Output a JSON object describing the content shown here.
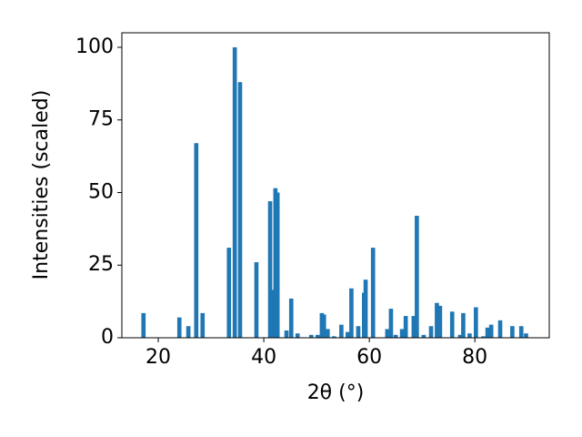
{
  "chart_data": {
    "type": "bar",
    "xlabel": "2θ (°)",
    "ylabel": "Intensities (scaled)",
    "x": [
      17.2,
      24.0,
      25.7,
      27.2,
      28.4,
      33.4,
      34.5,
      35.5,
      38.6,
      41.2,
      41.7,
      42.2,
      42.6,
      44.3,
      45.2,
      46.4,
      49.0,
      50.2,
      51.0,
      51.4,
      52.1,
      53.3,
      54.7,
      55.9,
      56.6,
      57.9,
      59.0,
      59.3,
      60.7,
      63.4,
      64.1,
      65.0,
      66.2,
      66.9,
      68.4,
      69.0,
      70.3,
      71.7,
      72.8,
      73.4,
      75.7,
      77.2,
      77.8,
      79.0,
      80.2,
      81.6,
      82.4,
      83.1,
      84.8,
      87.1,
      88.8,
      89.7
    ],
    "values": [
      8.5,
      7,
      4,
      67,
      8.5,
      31,
      100,
      88,
      26,
      47,
      16.5,
      51.5,
      50,
      2.5,
      13.5,
      1.5,
      1,
      1,
      8.5,
      8,
      3,
      0.5,
      4.5,
      2,
      17,
      4,
      15.5,
      20,
      31,
      3,
      10,
      1,
      3,
      7.5,
      7.5,
      42,
      1,
      4,
      12,
      11,
      9,
      1,
      8.5,
      1.5,
      10.5,
      0.5,
      3.5,
      4.5,
      6,
      4,
      4,
      1.5
    ],
    "color": "#1f77b4",
    "xlim": [
      13.1,
      94.1
    ],
    "xticks": [
      20,
      40,
      60,
      80
    ],
    "ylim": [
      0,
      105
    ],
    "yticks": [
      0,
      25,
      50,
      75,
      100
    ]
  }
}
